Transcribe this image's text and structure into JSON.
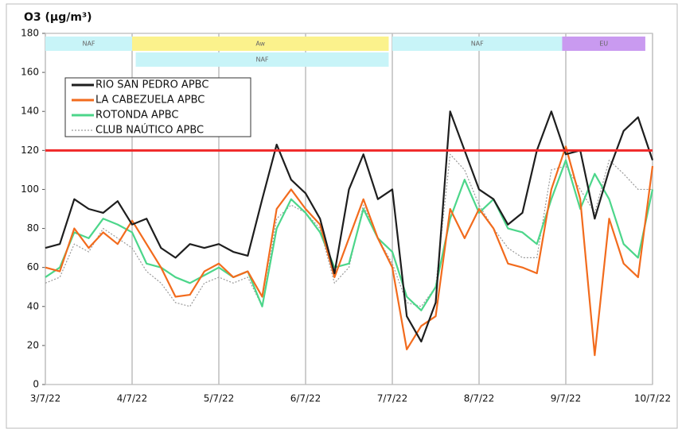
{
  "chart_data": {
    "type": "line",
    "title": "O3 (µg/m³)",
    "x": [
      0,
      4,
      8,
      12,
      16,
      20,
      24,
      28,
      32,
      36,
      40,
      44,
      48,
      52,
      56,
      60,
      64,
      68,
      72,
      76,
      80,
      84,
      88,
      92,
      96,
      100,
      104,
      108,
      112,
      116,
      120,
      124,
      128,
      132,
      136,
      140,
      144,
      148,
      152,
      156,
      160,
      164,
      168
    ],
    "xlim": [
      0,
      168
    ],
    "xticks": [
      {
        "value": 0,
        "label": "3/7/22"
      },
      {
        "value": 24,
        "label": "4/7/22"
      },
      {
        "value": 48,
        "label": "5/7/22"
      },
      {
        "value": 72,
        "label": "6/7/22"
      },
      {
        "value": 96,
        "label": "7/7/22"
      },
      {
        "value": 120,
        "label": "8/7/22"
      },
      {
        "value": 144,
        "label": "9/7/22"
      },
      {
        "value": 168,
        "label": "10/7/22"
      }
    ],
    "ylim": [
      0,
      180
    ],
    "yticks": [
      0,
      20,
      40,
      60,
      80,
      100,
      120,
      140,
      160,
      180
    ],
    "grid": "x",
    "series": [
      {
        "name": "RIO SAN PEDRO APBC",
        "color": "#1e1e1e",
        "style": "solid",
        "values": [
          70,
          72,
          95,
          90,
          88,
          94,
          82,
          85,
          70,
          65,
          72,
          70,
          72,
          68,
          66,
          95,
          123,
          105,
          98,
          85,
          57,
          100,
          118,
          95,
          100,
          35,
          22,
          42,
          140,
          120,
          100,
          95,
          82,
          88,
          120,
          140,
          118,
          120,
          85,
          110,
          130,
          137,
          115
        ]
      },
      {
        "name": "LA CABEZUELA  APBC",
        "color": "#f26b1d",
        "style": "solid",
        "values": [
          60,
          58,
          80,
          70,
          78,
          72,
          84,
          72,
          60,
          45,
          46,
          58,
          62,
          55,
          58,
          45,
          90,
          100,
          90,
          82,
          55,
          75,
          95,
          75,
          60,
          18,
          30,
          35,
          90,
          75,
          90,
          80,
          62,
          60,
          57,
          100,
          122,
          95,
          15,
          85,
          62,
          55,
          112
        ]
      },
      {
        "name": "ROTONDA  APBC",
        "color": "#4cd68a",
        "style": "solid",
        "values": [
          55,
          60,
          78,
          75,
          85,
          82,
          78,
          62,
          60,
          55,
          52,
          56,
          60,
          55,
          58,
          40,
          80,
          95,
          88,
          78,
          60,
          62,
          90,
          75,
          68,
          45,
          38,
          50,
          85,
          105,
          88,
          95,
          80,
          78,
          72,
          95,
          115,
          90,
          108,
          95,
          72,
          65,
          100
        ]
      },
      {
        "name": "CLUB NAÚTICO  APBC",
        "color": "#9a9a9a",
        "style": "dotted",
        "values": [
          52,
          55,
          72,
          68,
          80,
          75,
          70,
          58,
          52,
          42,
          40,
          52,
          55,
          52,
          55,
          40,
          85,
          92,
          88,
          80,
          52,
          60,
          92,
          75,
          62,
          42,
          40,
          50,
          118,
          110,
          92,
          80,
          70,
          65,
          65,
          110,
          112,
          100,
          88,
          115,
          108,
          100,
          100
        ]
      }
    ],
    "threshold": {
      "value": 120,
      "color": "#f02828"
    },
    "bands": [
      {
        "label": "NAF",
        "start": 0,
        "end": 24,
        "row": 1,
        "color": "#c8f4f8"
      },
      {
        "label": "Aw",
        "start": 24,
        "end": 95,
        "row": 1,
        "color": "#fbf28c"
      },
      {
        "label": "NAF",
        "start": 96,
        "end": 143,
        "row": 1,
        "color": "#c8f4f8"
      },
      {
        "label": "EU",
        "start": 143,
        "end": 166,
        "row": 1,
        "color": "#c99af0"
      },
      {
        "label": "NAF",
        "start": 25,
        "end": 95,
        "row": 2,
        "color": "#c8f4f8"
      }
    ]
  }
}
